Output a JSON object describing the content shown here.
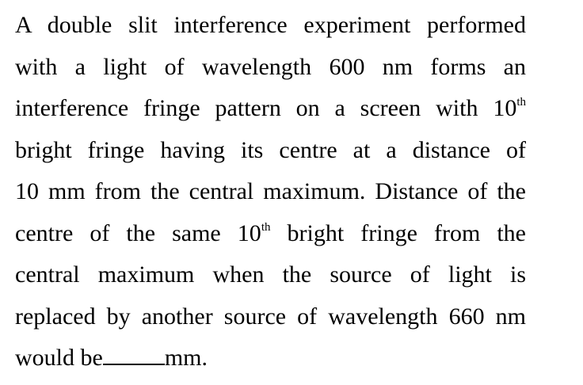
{
  "question": {
    "lines": [
      {
        "text": "A double slit interference experiment performed"
      },
      {
        "text": "with a light of wavelength 600 nm forms an"
      },
      {
        "text": "interference fringe pattern on a screen with 10",
        "sup": "th"
      },
      {
        "text": "bright fringe having its centre at a distance of"
      },
      {
        "text": "10 mm from the central maximum. Distance of the"
      },
      {
        "pre": "centre of the same 10",
        "sup": "th",
        "post": " bright fringe from the"
      },
      {
        "text": "central maximum when the source of light is"
      },
      {
        "text": "replaced by another source of wavelength 660 nm"
      },
      {
        "pre": "would be",
        "post": "mm."
      }
    ]
  }
}
